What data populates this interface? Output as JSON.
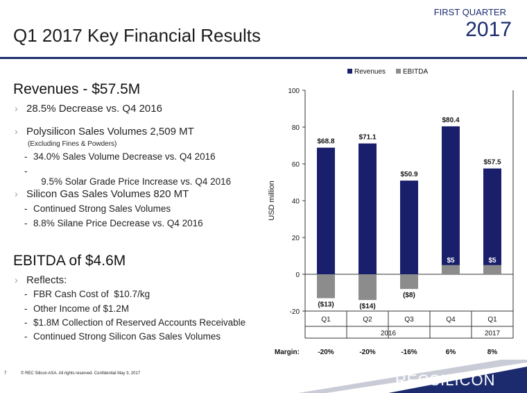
{
  "header": {
    "title": "Q1 2017 Key Financial Results",
    "quarter_label": "FIRST QUARTER",
    "year": "2017"
  },
  "revenues": {
    "heading": "Revenues - $57.5M",
    "items": [
      {
        "text": "28.5% Decrease vs. Q4 2016"
      },
      {
        "text": "Polysilicon Sales Volumes 2,509 MT",
        "note": "(Excluding Fines & Powders)",
        "subitems": [
          "34.0% Sales Volume Decrease vs. Q4 2016",
          " 9.5% Solar Grade Price Increase vs. Q4 2016"
        ]
      },
      {
        "text": "Silicon Gas Sales Volumes 820 MT",
        "subitems": [
          "Continued Strong Sales Volumes",
          "8.8% Silane Price Decrease vs. Q4 2016"
        ]
      }
    ]
  },
  "ebitda": {
    "heading": "EBITDA of $4.6M",
    "reflects_label": "Reflects:",
    "subitems": [
      "FBR Cash Cost of  $10.7/kg",
      "Other Income of $1.2M",
      "$1.8M Collection of Reserved Accounts Receivable",
      "Continued Strong Silicon Gas Sales Volumes"
    ]
  },
  "footer": {
    "page_number": "7",
    "copyright": "© REC Silicon ASA. All rights reserved. Confidential  May 3, 2017",
    "logo_text": "RECSILICON"
  },
  "colors": {
    "revenues": "#1a1f6b",
    "ebitda": "#8c8c8c",
    "accent": "#1b2b6e"
  },
  "chart_data": {
    "type": "bar",
    "categories": [
      "Q1",
      "Q2",
      "Q3",
      "Q4",
      "Q1"
    ],
    "group_labels": [
      {
        "label": "2016",
        "span": 4
      },
      {
        "label": "2017",
        "span": 1
      }
    ],
    "series": [
      {
        "name": "Revenues",
        "values": [
          68.8,
          71.1,
          50.9,
          80.4,
          57.5
        ],
        "labels": [
          "$68.8",
          "$71.1",
          "$50.9",
          "$80.4",
          "$57.5"
        ]
      },
      {
        "name": "EBITDA",
        "values": [
          -13,
          -14,
          -8,
          5,
          5
        ],
        "labels": [
          "($13)",
          "($14)",
          "($8)",
          "$5",
          "$5"
        ]
      }
    ],
    "ylabel": "USD million",
    "ylim": [
      -20,
      100
    ],
    "yticks": [
      "-20",
      "0",
      "20",
      "40",
      "60",
      "80",
      "100"
    ],
    "legend_position": "top",
    "margin_label": "Margin:",
    "margins": [
      "-20%",
      "-20%",
      "-16%",
      "6%",
      "8%"
    ]
  }
}
